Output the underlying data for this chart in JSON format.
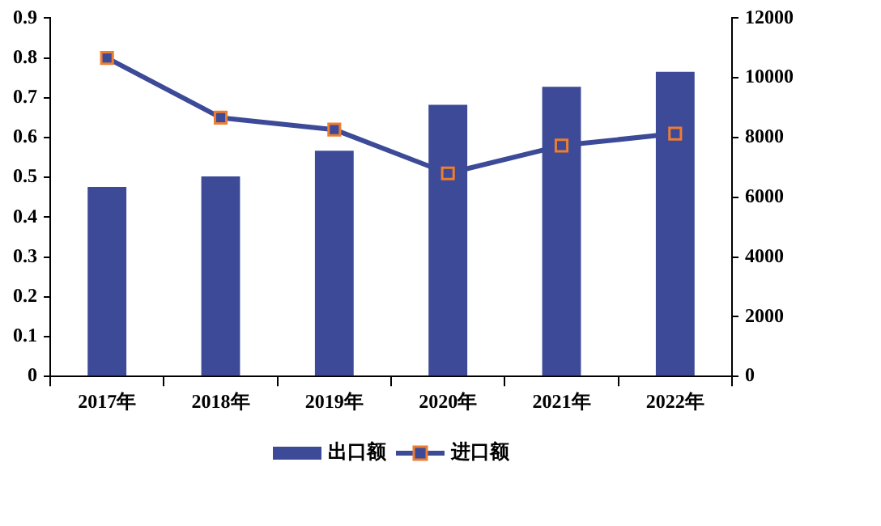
{
  "chart_data": {
    "type": "bar",
    "categories": [
      "2017年",
      "2018年",
      "2019年",
      "2020年",
      "2021年",
      "2022年"
    ],
    "series": [
      {
        "name": "出口额",
        "axis": "y2",
        "color": "#3c4a98",
        "values": [
          6350,
          6700,
          7560,
          9100,
          9700,
          10200
        ]
      },
      {
        "name": "进口额",
        "type": "line",
        "axis": "y",
        "color": "#3c4a98",
        "values": [
          0.8,
          0.65,
          0.62,
          0.51,
          0.58,
          0.61
        ]
      }
    ],
    "ylim": [
      0,
      0.9
    ],
    "yticks": [
      0,
      0.1,
      0.2,
      0.3,
      0.4,
      0.5,
      0.6,
      0.7,
      0.8,
      0.9
    ],
    "y2lim": [
      0,
      12000
    ],
    "y2ticks": [
      0,
      2000,
      4000,
      6000,
      8000,
      10000,
      12000
    ],
    "marker": "square",
    "legend": "bottom",
    "grid": false
  }
}
